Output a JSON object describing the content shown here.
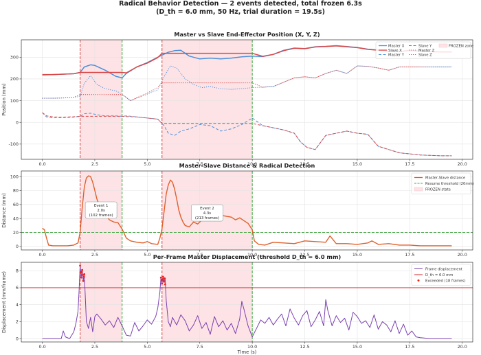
{
  "figure": {
    "title_line1": "Radical Behavior Detection — 2 events detected, total frozen 6.3s",
    "title_line2": "(D_th = 6.0 mm, 50 Hz, trial duration = 19.5s)"
  },
  "colors": {
    "master": "#4a90d9",
    "slave": "#d94848",
    "distance": "#e0602a",
    "threshold_line": "#4aaa4a",
    "event_start_line": "#d9534f",
    "resume_line": "#4aaa4a",
    "frozen_fill": "#fde3e6",
    "displacement": "#7a3fb0",
    "dth_line": "#d62728",
    "exceeded": "#e8201a"
  },
  "chart_data": [
    {
      "type": "line",
      "title": "Master vs Slave End-Effector Position (X, Y, Z)",
      "xlabel": "",
      "ylabel": "Position (mm)",
      "xlim": [
        -1.0,
        20.5
      ],
      "ylim": [
        -170,
        380
      ],
      "xticks": [
        "0.0",
        "2.5",
        "5.0",
        "7.5",
        "10.0",
        "12.5",
        "15.0",
        "17.5",
        "20.0"
      ],
      "yticks": [
        -100,
        0,
        100,
        200,
        300
      ],
      "grid": true,
      "legend_position": "top-right",
      "legend": [
        "Master X",
        "Slave X",
        "Master Y",
        "Slave Y",
        "Master Z",
        "Slave Z",
        "FROZEN zone"
      ],
      "frozen_zones": [
        [
          1.8,
          3.8
        ],
        [
          5.7,
          10.0
        ]
      ],
      "series": [
        {
          "name": "Master X",
          "x": [
            0,
            0.5,
            1,
            1.5,
            1.8,
            2,
            2.3,
            2.5,
            3,
            3.5,
            3.8,
            4,
            4.5,
            5,
            5.5,
            6,
            6.3,
            6.6,
            7,
            7.5,
            8,
            8.5,
            9,
            9.5,
            10,
            10.5,
            11,
            11.5,
            12,
            12.5,
            13,
            13.5,
            14,
            14.5,
            15,
            15.5,
            16,
            16.5,
            17,
            17.5,
            18,
            18.5,
            19,
            19.5
          ],
          "y": [
            218,
            220,
            222,
            224,
            230,
            255,
            265,
            262,
            240,
            212,
            205,
            225,
            255,
            275,
            300,
            323,
            330,
            332,
            305,
            292,
            296,
            292,
            296,
            302,
            305,
            303,
            313,
            332,
            342,
            340,
            348,
            350,
            353,
            349,
            345,
            337,
            333,
            328,
            326,
            332,
            328,
            326,
            325,
            325
          ]
        },
        {
          "name": "Slave X",
          "x": [
            0,
            0.5,
            1,
            1.5,
            1.8,
            3.8,
            4,
            4.5,
            5,
            5.5,
            5.7,
            10,
            10.5,
            11,
            11.5,
            12,
            12.5,
            13,
            13.5,
            14,
            14.5,
            15,
            15.5,
            16,
            16.5,
            17,
            17.5,
            18,
            18.5,
            19,
            19.5
          ],
          "y": [
            220,
            220,
            222,
            224,
            230,
            230,
            228,
            255,
            273,
            298,
            318,
            318,
            304,
            313,
            330,
            341,
            339,
            347,
            349,
            352,
            348,
            344,
            336,
            332,
            327,
            325,
            331,
            327,
            325,
            324,
            324
          ]
        },
        {
          "name": "Master Y",
          "x": [
            0,
            0.2,
            0.5,
            1,
            1.5,
            1.8,
            2,
            2.3,
            2.6,
            3,
            3.5,
            3.8,
            4,
            4.5,
            5,
            5.5,
            5.8,
            6,
            6.3,
            6.6,
            7,
            7.5,
            8,
            8.5,
            9,
            9.5,
            10,
            10.5,
            11,
            11.5,
            12,
            12.3,
            12.6,
            13,
            13.5,
            14,
            14.5,
            15,
            15.5,
            16,
            16.5,
            17,
            17.5,
            18,
            18.5,
            19,
            19.5
          ],
          "y": [
            45,
            25,
            22,
            22,
            24,
            28,
            40,
            42,
            35,
            30,
            30,
            28,
            30,
            25,
            20,
            15,
            -15,
            -50,
            -60,
            -40,
            -30,
            -10,
            -15,
            -40,
            -30,
            -10,
            20,
            -15,
            -25,
            -35,
            -50,
            -90,
            -115,
            -125,
            -60,
            -50,
            -40,
            -50,
            -55,
            -110,
            -125,
            -140,
            -145,
            -150,
            -152,
            -154,
            -154
          ]
        },
        {
          "name": "Slave Y",
          "x": [
            0,
            0.2,
            0.5,
            1,
            1.5,
            1.8,
            3.8,
            4,
            4.5,
            5,
            5.5,
            5.7,
            10,
            10.5,
            11,
            11.5,
            12,
            12.3,
            12.6,
            13,
            13.5,
            14,
            14.5,
            15,
            15.5,
            16,
            16.5,
            17,
            17.5,
            18,
            18.5,
            19,
            19.5
          ],
          "y": [
            45,
            30,
            25,
            24,
            26,
            28,
            28,
            27,
            25,
            20,
            15,
            -5,
            -5,
            -15,
            -25,
            -35,
            -50,
            -90,
            -115,
            -125,
            -60,
            -50,
            -40,
            -50,
            -55,
            -110,
            -125,
            -140,
            -145,
            -150,
            -152,
            -154,
            -154
          ]
        },
        {
          "name": "Master Z",
          "x": [
            0,
            0.5,
            1,
            1.5,
            1.8,
            2,
            2.3,
            2.6,
            3,
            3.5,
            3.8,
            4.2,
            4.6,
            5,
            5.5,
            5.8,
            6.1,
            6.4,
            6.8,
            7.2,
            7.6,
            8,
            8.5,
            9,
            9.5,
            10,
            10.5,
            11,
            11.5,
            12,
            12.5,
            13,
            13.5,
            14,
            14.5,
            15,
            15.5,
            16,
            16.5,
            17,
            17.5,
            18,
            18.5,
            19,
            19.5
          ],
          "y": [
            110,
            110,
            112,
            115,
            120,
            180,
            215,
            175,
            155,
            145,
            130,
            100,
            115,
            130,
            150,
            210,
            260,
            250,
            200,
            175,
            160,
            165,
            155,
            152,
            155,
            160,
            162,
            165,
            185,
            205,
            210,
            205,
            225,
            240,
            225,
            260,
            258,
            250,
            240,
            255,
            255,
            255,
            255,
            255,
            255
          ]
        },
        {
          "name": "Slave Z",
          "x": [
            0,
            0.5,
            1,
            1.5,
            1.8,
            3.8,
            4.2,
            4.6,
            5,
            5.5,
            5.7,
            10,
            10.5,
            11,
            11.5,
            12,
            12.5,
            13,
            13.5,
            14,
            14.5,
            15,
            15.5,
            16,
            16.5,
            17,
            17.5,
            18,
            18.5,
            19,
            19.5
          ],
          "y": [
            112,
            112,
            113,
            116,
            128,
            128,
            100,
            118,
            135,
            160,
            182,
            182,
            162,
            165,
            185,
            205,
            210,
            205,
            225,
            240,
            225,
            260,
            258,
            250,
            240,
            255,
            255,
            255,
            255,
            255,
            255
          ]
        }
      ]
    },
    {
      "type": "line",
      "title": "Master-Slave Distance & Radical Detection",
      "xlabel": "",
      "ylabel": "Distance (mm)",
      "xlim": [
        -1.0,
        20.5
      ],
      "ylim": [
        -5,
        108
      ],
      "xticks": [
        "0.0",
        "2.5",
        "5.0",
        "7.5",
        "10.0",
        "12.5",
        "15.0",
        "17.5",
        "20.0"
      ],
      "yticks": [
        0,
        20,
        40,
        60,
        80,
        100
      ],
      "grid": true,
      "legend_position": "top-right",
      "legend": [
        "Master-Slave distance",
        "Resume threshold (20mm)",
        "FROZEN state"
      ],
      "resume_threshold": 20,
      "frozen_zones": [
        [
          1.8,
          3.8
        ],
        [
          5.7,
          10.0
        ]
      ],
      "annotations": [
        {
          "lines": [
            "Event 1",
            "2.0s",
            "(102 frames)"
          ],
          "x": 2.8,
          "y": 52
        },
        {
          "lines": [
            "Event 2",
            "4.3s",
            "(213 frames)"
          ],
          "x": 7.85,
          "y": 48
        }
      ],
      "series": [
        {
          "name": "Master-Slave distance",
          "x": [
            0,
            0.1,
            0.2,
            0.3,
            0.5,
            0.8,
            1.0,
            1.2,
            1.5,
            1.7,
            1.8,
            1.9,
            2.0,
            2.1,
            2.2,
            2.3,
            2.4,
            2.5,
            2.6,
            2.7,
            2.8,
            3.0,
            3.2,
            3.4,
            3.6,
            3.8,
            4.0,
            4.2,
            4.5,
            4.8,
            5.0,
            5.2,
            5.5,
            5.6,
            5.7,
            5.8,
            5.9,
            6.0,
            6.1,
            6.2,
            6.3,
            6.4,
            6.5,
            6.6,
            6.7,
            6.8,
            7.0,
            7.2,
            7.4,
            7.6,
            7.8,
            8.0,
            8.2,
            8.4,
            8.6,
            8.8,
            9.0,
            9.2,
            9.4,
            9.6,
            9.8,
            10.0,
            10.1,
            10.3,
            10.6,
            11.0,
            11.5,
            12.0,
            12.5,
            13.0,
            13.5,
            13.7,
            14.0,
            14.5,
            15.0,
            15.5,
            15.7,
            16.0,
            16.5,
            17.0,
            17.5,
            18.0,
            18.5,
            19.0,
            19.5
          ],
          "y": [
            26,
            24,
            12,
            2,
            1,
            1,
            1,
            1,
            2,
            5,
            20,
            55,
            85,
            98,
            101,
            100,
            92,
            80,
            68,
            60,
            52,
            45,
            38,
            35,
            34,
            25,
            12,
            8,
            6,
            5,
            7,
            4,
            3,
            12,
            25,
            50,
            75,
            88,
            95,
            92,
            82,
            68,
            52,
            42,
            35,
            30,
            28,
            35,
            32,
            38,
            40,
            37,
            42,
            46,
            44,
            43,
            42,
            38,
            41,
            37,
            33,
            24,
            8,
            3,
            2,
            6,
            5,
            4,
            8,
            7,
            6,
            15,
            4,
            4,
            3,
            5,
            8,
            3,
            4,
            2,
            2,
            1,
            1,
            1,
            1
          ]
        }
      ]
    },
    {
      "type": "line",
      "title": "Per-Frame Master Displacement (threshold D_th = 6.0 mm)",
      "xlabel": "Time (s)",
      "ylabel": "Displacement (mm/frame)",
      "xlim": [
        -1.0,
        20.5
      ],
      "ylim": [
        -0.4,
        9.0
      ],
      "xticks": [
        "0.0",
        "2.5",
        "5.0",
        "7.5",
        "10.0",
        "12.5",
        "15.0",
        "17.5",
        "20.0"
      ],
      "yticks": [
        0,
        2,
        4,
        6,
        8
      ],
      "grid": true,
      "legend_position": "top-right",
      "legend": [
        "Frame displacement",
        "D_th = 6.0 mm",
        "Exceeded (18 frames)"
      ],
      "threshold": 6.0,
      "frozen_zones": [
        [
          1.8,
          3.8
        ],
        [
          5.7,
          10.0
        ]
      ],
      "series": [
        {
          "name": "Frame displacement",
          "x": [
            0,
            0.5,
            0.9,
            1.0,
            1.1,
            1.3,
            1.5,
            1.6,
            1.7,
            1.75,
            1.8,
            1.85,
            1.9,
            1.95,
            2.0,
            2.05,
            2.1,
            2.2,
            2.3,
            2.4,
            2.5,
            2.6,
            2.8,
            3.0,
            3.2,
            3.4,
            3.6,
            3.8,
            4.0,
            4.2,
            4.4,
            4.6,
            4.8,
            5.0,
            5.2,
            5.4,
            5.5,
            5.6,
            5.65,
            5.7,
            5.75,
            5.8,
            5.85,
            5.9,
            6.0,
            6.1,
            6.2,
            6.4,
            6.6,
            6.8,
            7.0,
            7.2,
            7.4,
            7.6,
            7.8,
            8.0,
            8.2,
            8.4,
            8.6,
            8.8,
            9.0,
            9.2,
            9.4,
            9.5,
            9.6,
            9.8,
            10.0,
            10.2,
            10.4,
            10.6,
            10.8,
            11.0,
            11.2,
            11.4,
            11.6,
            11.8,
            12.0,
            12.2,
            12.4,
            12.6,
            12.8,
            13.0,
            13.2,
            13.4,
            13.5,
            13.6,
            13.8,
            14.0,
            14.2,
            14.4,
            14.6,
            14.8,
            15.0,
            15.2,
            15.4,
            15.6,
            15.8,
            16.0,
            16.2,
            16.4,
            16.6,
            16.8,
            17.0,
            17.2,
            17.4,
            17.6,
            17.8,
            18.0,
            18.5,
            19.0,
            19.5
          ],
          "y": [
            0,
            0,
            0,
            0.9,
            0.2,
            0,
            0.8,
            1.8,
            3.2,
            5.5,
            8.6,
            7.2,
            8.1,
            6.8,
            7.6,
            4.8,
            2.0,
            1.2,
            2.5,
            0.8,
            2.6,
            2.9,
            2.3,
            1.6,
            2.1,
            1.3,
            2.5,
            1.5,
            0.4,
            0.3,
            1.9,
            0.9,
            1.5,
            2.2,
            1.7,
            2.6,
            3.6,
            5.5,
            7.2,
            6.5,
            7.3,
            6.7,
            7.1,
            4.5,
            2.0,
            1.4,
            2.5,
            1.6,
            2.8,
            2.1,
            0.9,
            1.6,
            2.7,
            1.2,
            1.9,
            0.5,
            2.6,
            1.4,
            2.1,
            1.0,
            1.8,
            0.6,
            2.3,
            4.4,
            3.5,
            1.5,
            0.2,
            1.2,
            2.2,
            1.8,
            2.5,
            1.6,
            2.3,
            2.9,
            1.5,
            3.5,
            2.4,
            1.6,
            2.7,
            3.3,
            1.4,
            2.2,
            3.2,
            1.5,
            4.6,
            3.3,
            1.5,
            2.7,
            1.9,
            2.4,
            1.0,
            3.1,
            2.6,
            1.8,
            2.1,
            1.3,
            2.8,
            1.1,
            2.0,
            1.6,
            0.8,
            2.1,
            0.6,
            1.7,
            0.4,
            0.9,
            0.2,
            0.1,
            0,
            0,
            0
          ]
        },
        {
          "name": "Exceeded (18 frames)",
          "x": [
            1.8,
            1.82,
            1.85,
            1.88,
            1.9,
            1.93,
            1.95,
            1.98,
            2.0,
            5.65,
            5.68,
            5.7,
            5.73,
            5.75,
            5.78,
            5.8,
            5.83,
            5.85
          ],
          "y": [
            8.6,
            7.8,
            7.2,
            7.9,
            8.1,
            7.5,
            6.8,
            7.3,
            7.6,
            7.2,
            6.9,
            6.5,
            7.0,
            7.3,
            6.8,
            6.7,
            7.1,
            6.4
          ]
        }
      ]
    }
  ]
}
